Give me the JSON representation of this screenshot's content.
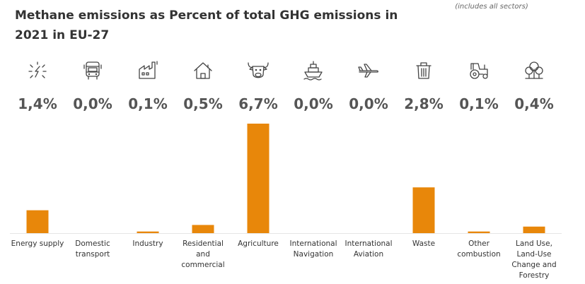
{
  "title": "Methane emissions as Percent of total GHG emissions in 2021 in EU-27",
  "note": "(includes all sectors)",
  "colors": {
    "bar": "#E8870A",
    "axis": "#e6e6e6"
  },
  "chart_data": {
    "type": "bar",
    "title": "Methane emissions as Percent of total GHG emissions in 2021 in EU-27",
    "categories": [
      "Energy supply",
      "Domestic transport",
      "Industry",
      "Residential and commercial",
      "Agriculture",
      "International Navigation",
      "International Aviation",
      "Waste",
      "Other combustion",
      "Land Use, Land-Use Change and Forestry"
    ],
    "values": [
      1.4,
      0.0,
      0.1,
      0.5,
      6.7,
      0.0,
      0.0,
      2.8,
      0.1,
      0.4
    ],
    "value_labels": [
      "1,4%",
      "0,0%",
      "0,1%",
      "0,5%",
      "6,7%",
      "0,0%",
      "0,0%",
      "2,8%",
      "0,1%",
      "0,4%"
    ],
    "category_lines": [
      [
        "Energy supply"
      ],
      [
        "Domestic",
        "transport"
      ],
      [
        "Industry"
      ],
      [
        "Residential",
        "and",
        "commercial"
      ],
      [
        "Agriculture"
      ],
      [
        "International",
        "Navigation"
      ],
      [
        "International",
        "Aviation"
      ],
      [
        "Waste"
      ],
      [
        "Other",
        "combustion"
      ],
      [
        "Land Use,",
        "Land-Use",
        "Change and",
        "Forestry"
      ]
    ],
    "icons": [
      "energy-icon",
      "bus-icon",
      "factory-icon",
      "house-icon",
      "cow-icon",
      "ship-icon",
      "airplane-icon",
      "trash-icon",
      "tractor-icon",
      "trees-icon"
    ],
    "ylim": [
      0,
      6.7
    ],
    "xlabel": "",
    "ylabel": "",
    "grid": false
  }
}
